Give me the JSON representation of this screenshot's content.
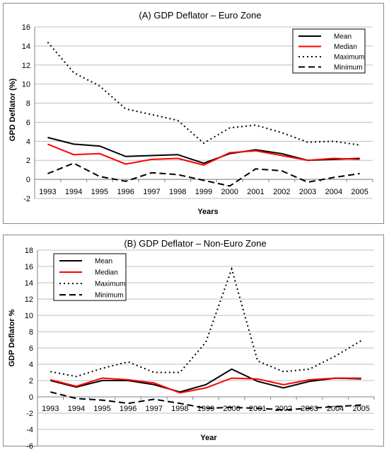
{
  "colors": {
    "mean": "#000000",
    "median": "#ff0000",
    "maximum": "#000000",
    "minimum": "#000000",
    "grid": "#bfbfbf"
  },
  "chart_data": [
    {
      "type": "line",
      "title": "(A) GDP Deflator – Euro Zone",
      "xlabel": "Years",
      "ylabel": "GPD Deflator (%)",
      "ylim": [
        -2,
        16
      ],
      "yticks": [
        -2,
        0,
        2,
        4,
        6,
        8,
        10,
        12,
        14,
        16
      ],
      "grid": true,
      "legend_position": "top-right",
      "categories": [
        "1993",
        "1994",
        "1995",
        "1996",
        "1997",
        "1998",
        "1999",
        "2000",
        "2001",
        "2002",
        "2003",
        "2004",
        "2005"
      ],
      "series": [
        {
          "name": "Mean",
          "style": "solid",
          "color": "#000000",
          "values": [
            4.4,
            3.7,
            3.5,
            2.4,
            2.5,
            2.6,
            1.7,
            2.7,
            3.1,
            2.7,
            2.0,
            2.1,
            2.2
          ]
        },
        {
          "name": "Median",
          "style": "solid",
          "color": "#ff0000",
          "values": [
            3.7,
            2.6,
            2.7,
            1.6,
            2.1,
            2.2,
            1.5,
            2.8,
            3.0,
            2.5,
            2.0,
            2.2,
            2.1
          ]
        },
        {
          "name": "Maximum",
          "style": "dotted",
          "color": "#000000",
          "values": [
            14.4,
            11.2,
            9.8,
            7.4,
            6.8,
            6.2,
            3.8,
            5.4,
            5.7,
            4.9,
            3.9,
            4.0,
            3.6
          ]
        },
        {
          "name": "Minimum",
          "style": "dashed",
          "color": "#000000",
          "values": [
            0.6,
            1.7,
            0.3,
            -0.2,
            0.7,
            0.5,
            -0.1,
            -0.7,
            1.1,
            0.9,
            -0.3,
            0.2,
            0.6
          ]
        }
      ]
    },
    {
      "type": "line",
      "title": "(B) GDP Deflator – Non-Euro Zone",
      "xlabel": "Year",
      "ylabel": "GDP Deflator %",
      "ylim": [
        -6,
        18
      ],
      "yticks": [
        -6,
        -4,
        -2,
        0,
        2,
        4,
        6,
        8,
        10,
        12,
        14,
        16,
        18
      ],
      "grid": true,
      "legend_position": "top-left",
      "categories": [
        "1993",
        "1994",
        "1995",
        "1996",
        "1997",
        "1998",
        "1999",
        "2000",
        "2001",
        "2002",
        "2003",
        "2004",
        "2005"
      ],
      "series": [
        {
          "name": "Mean",
          "style": "solid",
          "color": "#000000",
          "values": [
            2.0,
            1.2,
            2.0,
            2.0,
            1.5,
            0.6,
            1.5,
            3.4,
            1.9,
            1.1,
            1.9,
            2.3,
            2.2
          ]
        },
        {
          "name": "Median",
          "style": "solid",
          "color": "#ff0000",
          "values": [
            2.1,
            1.3,
            2.3,
            2.1,
            1.7,
            0.5,
            1.1,
            2.3,
            2.2,
            1.5,
            2.1,
            2.3,
            2.3
          ]
        },
        {
          "name": "Maximum",
          "style": "dotted",
          "color": "#000000",
          "values": [
            3.1,
            2.5,
            3.5,
            4.3,
            3.0,
            3.0,
            6.7,
            15.7,
            4.4,
            3.1,
            3.4,
            5.0,
            6.9
          ]
        },
        {
          "name": "Minimum",
          "style": "dashed",
          "color": "#000000",
          "values": [
            0.6,
            -0.2,
            -0.4,
            -0.8,
            -0.3,
            -0.8,
            -1.4,
            -1.3,
            -1.4,
            -1.6,
            -1.4,
            -1.2,
            -1.0
          ]
        }
      ]
    }
  ]
}
